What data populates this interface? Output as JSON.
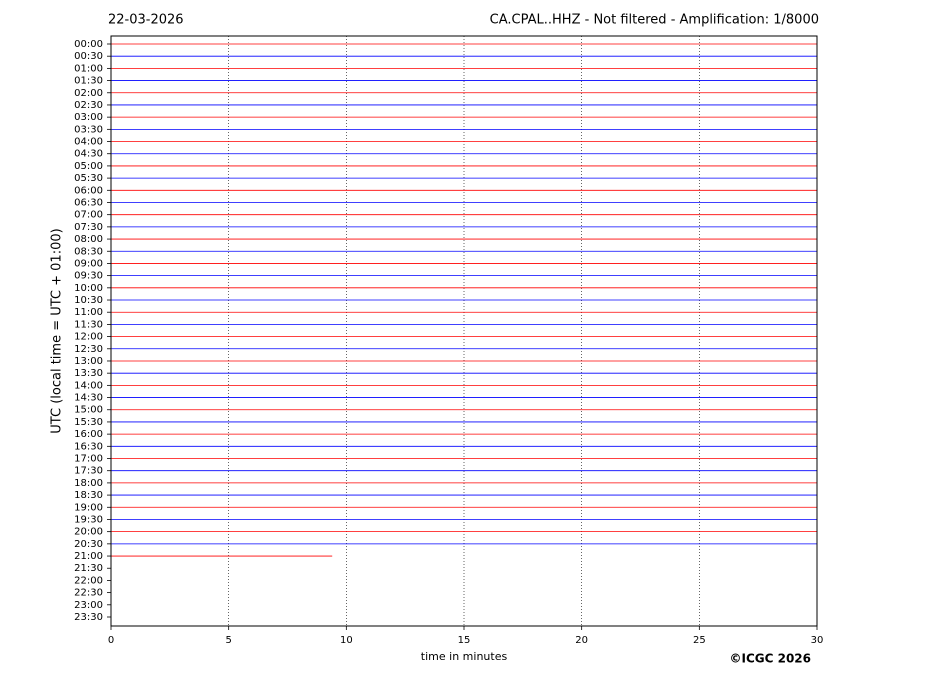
{
  "chart_data": {
    "type": "helicorder",
    "date": "22-03-2026",
    "title": "CA.CPAL..HHZ - Not filtered - Amplification: 1/8000",
    "xlabel": "time in minutes",
    "ylabel": "UTC (local time = UTC + 01:00)",
    "credit": "©ICGC 2026",
    "categories": [
      "00:00",
      "00:30",
      "01:00",
      "01:30",
      "02:00",
      "02:30",
      "03:00",
      "03:30",
      "04:00",
      "04:30",
      "05:00",
      "05:30",
      "06:00",
      "06:30",
      "07:00",
      "07:30",
      "08:00",
      "08:30",
      "09:00",
      "09:30",
      "10:00",
      "10:30",
      "11:00",
      "11:30",
      "12:00",
      "12:30",
      "13:00",
      "13:30",
      "14:00",
      "14:30",
      "15:00",
      "15:30",
      "16:00",
      "16:30",
      "17:00",
      "17:30",
      "18:00",
      "18:30",
      "19:00",
      "19:30",
      "20:00",
      "20:30",
      "21:00",
      "21:30",
      "22:00",
      "22:30",
      "23:00",
      "23:30"
    ],
    "xlim": [
      0,
      30
    ],
    "xticks": [
      0,
      5,
      10,
      15,
      20,
      25,
      30
    ],
    "grid": true,
    "traces": [
      {
        "color": "#ff0000",
        "end": 30
      },
      {
        "color": "#0000ff",
        "end": 30
      },
      {
        "color": "#ff0000",
        "end": 30
      },
      {
        "color": "#0000ff",
        "end": 30
      },
      {
        "color": "#ff0000",
        "end": 30
      },
      {
        "color": "#0000ff",
        "end": 30
      },
      {
        "color": "#ff0000",
        "end": 30
      },
      {
        "color": "#0000ff",
        "end": 30
      },
      {
        "color": "#ff0000",
        "end": 30
      },
      {
        "color": "#0000ff",
        "end": 30
      },
      {
        "color": "#ff0000",
        "end": 30
      },
      {
        "color": "#0000ff",
        "end": 30
      },
      {
        "color": "#ff0000",
        "end": 30
      },
      {
        "color": "#0000ff",
        "end": 30
      },
      {
        "color": "#ff0000",
        "end": 30
      },
      {
        "color": "#0000ff",
        "end": 30
      },
      {
        "color": "#ff0000",
        "end": 30
      },
      {
        "color": "#0000ff",
        "end": 30
      },
      {
        "color": "#ff0000",
        "end": 30
      },
      {
        "color": "#0000ff",
        "end": 30
      },
      {
        "color": "#ff0000",
        "end": 30
      },
      {
        "color": "#0000ff",
        "end": 30
      },
      {
        "color": "#ff0000",
        "end": 30
      },
      {
        "color": "#0000ff",
        "end": 30
      },
      {
        "color": "#ff0000",
        "end": 30
      },
      {
        "color": "#0000ff",
        "end": 30
      },
      {
        "color": "#ff0000",
        "end": 30
      },
      {
        "color": "#0000ff",
        "end": 30
      },
      {
        "color": "#ff0000",
        "end": 30
      },
      {
        "color": "#0000ff",
        "end": 30
      },
      {
        "color": "#ff0000",
        "end": 30
      },
      {
        "color": "#0000ff",
        "end": 30
      },
      {
        "color": "#ff0000",
        "end": 30
      },
      {
        "color": "#0000ff",
        "end": 30
      },
      {
        "color": "#ff0000",
        "end": 30
      },
      {
        "color": "#0000ff",
        "end": 30
      },
      {
        "color": "#ff0000",
        "end": 30
      },
      {
        "color": "#0000ff",
        "end": 30
      },
      {
        "color": "#ff0000",
        "end": 30
      },
      {
        "color": "#0000ff",
        "end": 30
      },
      {
        "color": "#ff0000",
        "end": 30
      },
      {
        "color": "#0000ff",
        "end": 30
      },
      {
        "color": "#ff0000",
        "end": 9.4
      }
    ]
  }
}
